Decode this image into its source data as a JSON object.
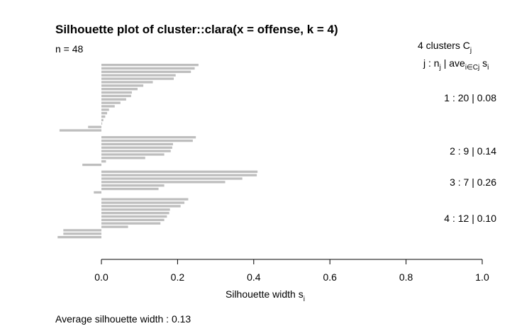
{
  "chart_data": {
    "type": "bar",
    "orientation": "horizontal",
    "title": "Silhouette plot of cluster::clara(x = offense, k = 4)",
    "n_label": "n = 48",
    "legend_header": {
      "line1_prefix": "4  clusters  C",
      "line1_sub": "j",
      "line2_j": "j :  n",
      "line2_nsub": "j",
      "line2_mid": " | ave",
      "line2_sub": "i∈Cj",
      "line2_s": "  s",
      "line2_ssub": "i"
    },
    "xlabel": "Silhouette width s",
    "xlabel_sub": "i",
    "xlim": [
      -0.12,
      1.0
    ],
    "xticks": [
      0.0,
      0.2,
      0.4,
      0.6,
      0.8,
      1.0
    ],
    "xtick_labels": [
      "0.0",
      "0.2",
      "0.4",
      "0.6",
      "0.8",
      "1.0"
    ],
    "clusters": [
      {
        "label": "1 :   20  |  0.08",
        "values": [
          0.255,
          0.245,
          0.235,
          0.195,
          0.19,
          0.135,
          0.11,
          0.095,
          0.08,
          0.078,
          0.065,
          0.05,
          0.035,
          0.02,
          0.015,
          0.01,
          0.005,
          0.002,
          -0.035,
          -0.11
        ]
      },
      {
        "label": "2 :   9  |  0.14",
        "values": [
          0.248,
          0.24,
          0.188,
          0.186,
          0.182,
          0.165,
          0.115,
          0.012,
          -0.05
        ]
      },
      {
        "label": "3 :   7  |  0.26",
        "values": [
          0.41,
          0.408,
          0.37,
          0.325,
          0.165,
          0.15,
          -0.02
        ]
      },
      {
        "label": "4 :   12  |  0.10",
        "values": [
          0.228,
          0.218,
          0.208,
          0.18,
          0.178,
          0.172,
          0.165,
          0.155,
          0.07,
          -0.1,
          -0.1,
          -0.115
        ]
      }
    ],
    "footer": "Average silhouette width :  0.13",
    "bar_color": "#bebebe"
  }
}
